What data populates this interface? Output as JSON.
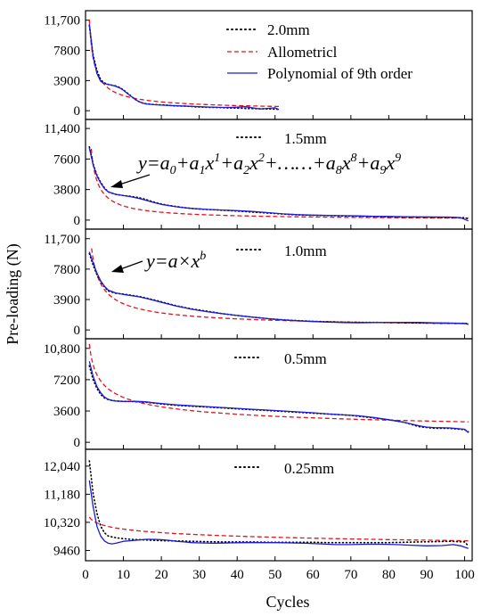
{
  "chart_data": {
    "type": "line",
    "xlabel": "Cycles",
    "ylabel": "Pre-loading (N)",
    "xlim": [
      0,
      102
    ],
    "xticks": [
      0,
      10,
      20,
      30,
      40,
      50,
      60,
      70,
      80,
      90,
      100
    ],
    "colors": {
      "data": "#000000",
      "allometric": "#e8121b",
      "polynomial": "#1a1adf"
    },
    "legend": [
      {
        "label": "2.0mm",
        "style": "dotted",
        "color": "#000000"
      },
      {
        "label": "Allometricl",
        "style": "dashed",
        "color": "#e8121b"
      },
      {
        "label": "Polynomial of 9th order",
        "style": "solid",
        "color": "#1a1adf"
      }
    ],
    "equations": {
      "poly": {
        "y": "y",
        "eq": "=",
        "a": "a",
        "x": "x",
        "plus": "+",
        "dots": "……",
        "s0": "0",
        "s1": "1",
        "s2": "2",
        "s8": "8",
        "s9": "9",
        "p1": "1",
        "p2": "2",
        "p8": "8",
        "p9": "9"
      },
      "power": {
        "y": "y",
        "eq": "=",
        "a": "a",
        "times": "×",
        "x": "x",
        "b": "b"
      }
    },
    "panels": [
      {
        "label": "2.0mm",
        "ylim": [
          -900,
          12700
        ],
        "yticks": [
          0,
          3900,
          7800,
          11700
        ],
        "ytick_labels": [
          "0",
          "3900",
          "7800",
          "11,700"
        ],
        "data": {
          "x": [
            1,
            2,
            3,
            4,
            5,
            6,
            7,
            8,
            9,
            10,
            11,
            12,
            13,
            14,
            15,
            16,
            17,
            18,
            19,
            20,
            21,
            22,
            23,
            24,
            25,
            26,
            27,
            28,
            29,
            30,
            31,
            32,
            33,
            34,
            35,
            36,
            37,
            38,
            39,
            40,
            41,
            42,
            43,
            44,
            45,
            46,
            47,
            48,
            49,
            50,
            51
          ],
          "y": [
            11000,
            7200,
            5200,
            4000,
            3600,
            3400,
            3300,
            3200,
            3000,
            2700,
            2300,
            1900,
            1500,
            1200,
            1000,
            900,
            850,
            800,
            780,
            760,
            740,
            700,
            650,
            620,
            600,
            600,
            580,
            540,
            500,
            480,
            460,
            450,
            430,
            420,
            410,
            400,
            380,
            360,
            340,
            330,
            320,
            300,
            280,
            270,
            260,
            250,
            240,
            230,
            220,
            200,
            180
          ]
        },
        "allometric": {
          "a": 11800,
          "b": -0.78,
          "x0": 1,
          "x1": 51
        },
        "polynomial": {
          "x": [
            1,
            2,
            3,
            4,
            5,
            6,
            7,
            8,
            9,
            10,
            11,
            12,
            13,
            14,
            15,
            16,
            18,
            20,
            22,
            25,
            28,
            30,
            32,
            35,
            38,
            40,
            42,
            44,
            46,
            48,
            50,
            51
          ],
          "y": [
            11200,
            7000,
            4800,
            3800,
            3500,
            3400,
            3300,
            3150,
            2950,
            2650,
            2250,
            1850,
            1500,
            1200,
            1000,
            880,
            780,
            720,
            680,
            620,
            560,
            520,
            480,
            440,
            420,
            460,
            520,
            380,
            230,
            300,
            380,
            150
          ]
        }
      },
      {
        "label": "1.5mm",
        "ylim": [
          -900,
          12300
        ],
        "yticks": [
          0,
          3800,
          7600,
          11400
        ],
        "ytick_labels": [
          "0",
          "3800",
          "7600",
          "11,400"
        ],
        "data": {
          "x": [
            1,
            2,
            3,
            4,
            5,
            6,
            8,
            10,
            12,
            14,
            16,
            18,
            20,
            22,
            24,
            26,
            28,
            30,
            32,
            34,
            36,
            38,
            40,
            42,
            44,
            46,
            48,
            50,
            52,
            54,
            56,
            58,
            60,
            62,
            64,
            66,
            68,
            70,
            72,
            74,
            76,
            78,
            80,
            82,
            84,
            86,
            88,
            90,
            92,
            94,
            96,
            98,
            100,
            101
          ],
          "y": [
            9100,
            7000,
            5600,
            4700,
            4000,
            3500,
            3200,
            3050,
            2950,
            2800,
            2550,
            2250,
            2000,
            1820,
            1680,
            1550,
            1450,
            1380,
            1320,
            1280,
            1230,
            1180,
            1120,
            1060,
            1000,
            940,
            880,
            820,
            750,
            700,
            650,
            620,
            600,
            580,
            560,
            540,
            520,
            500,
            480,
            460,
            440,
            420,
            400,
            390,
            380,
            370,
            360,
            350,
            340,
            330,
            320,
            310,
            300,
            150
          ]
        },
        "allometric": {
          "a": 12500,
          "b": -0.85,
          "x0": 1.5,
          "x1": 101
        },
        "polynomial": {
          "x": [
            1,
            2,
            3,
            4,
            5,
            6,
            8,
            10,
            12,
            14,
            16,
            18,
            20,
            24,
            28,
            32,
            36,
            40,
            44,
            48,
            52,
            56,
            60,
            64,
            68,
            72,
            76,
            80,
            84,
            88,
            92,
            96,
            99,
            101
          ],
          "y": [
            9000,
            6900,
            5500,
            4600,
            3900,
            3500,
            3200,
            3050,
            2900,
            2700,
            2450,
            2200,
            1950,
            1650,
            1450,
            1330,
            1250,
            1170,
            1070,
            930,
            780,
            680,
            620,
            580,
            550,
            520,
            480,
            450,
            420,
            400,
            390,
            380,
            300,
            -100
          ]
        }
      },
      {
        "label": "1.0mm",
        "ylim": [
          -900,
          12700
        ],
        "yticks": [
          0,
          3900,
          7800,
          11700
        ],
        "ytick_labels": [
          "0",
          "3900",
          "7800",
          "11,700"
        ],
        "data": {
          "x": [
            1,
            2,
            3,
            4,
            5,
            6,
            8,
            10,
            12,
            14,
            16,
            18,
            20,
            22,
            24,
            26,
            28,
            30,
            32,
            34,
            36,
            38,
            40,
            44,
            48,
            52,
            56,
            60,
            64,
            68,
            72,
            76,
            80,
            84,
            88,
            92,
            96,
            100,
            101
          ],
          "y": [
            9800,
            8300,
            7100,
            6200,
            5500,
            5000,
            4700,
            4600,
            4450,
            4300,
            4100,
            3850,
            3600,
            3350,
            3100,
            2900,
            2700,
            2550,
            2400,
            2250,
            2100,
            1980,
            1850,
            1650,
            1450,
            1300,
            1200,
            1100,
            1050,
            1000,
            980,
            960,
            950,
            930,
            900,
            880,
            860,
            850,
            800
          ]
        },
        "allometric": {
          "a": 14000,
          "b": -0.62,
          "x0": 1.6,
          "x1": 101
        },
        "polynomial": {
          "x": [
            1,
            2,
            3,
            4,
            5,
            6,
            8,
            10,
            12,
            14,
            16,
            18,
            20,
            24,
            28,
            32,
            36,
            40,
            44,
            48,
            52,
            56,
            60,
            64,
            68,
            72,
            76,
            80,
            84,
            88,
            92,
            96,
            100,
            101
          ],
          "y": [
            10000,
            8600,
            7300,
            6300,
            5600,
            5100,
            4750,
            4550,
            4400,
            4250,
            4050,
            3800,
            3550,
            3050,
            2650,
            2350,
            2100,
            1850,
            1650,
            1450,
            1300,
            1180,
            1080,
            1000,
            950,
            920,
            940,
            970,
            980,
            960,
            920,
            880,
            840,
            700
          ]
        }
      },
      {
        "label": "0.5mm",
        "ylim": [
          -600,
          11700
        ],
        "yticks": [
          0,
          3600,
          7200,
          10800
        ],
        "ytick_labels": [
          "0",
          "3600",
          "7200",
          "10,800"
        ],
        "data": {
          "x": [
            1,
            2,
            3,
            4,
            5,
            6,
            8,
            10,
            12,
            14,
            16,
            18,
            20,
            24,
            28,
            32,
            36,
            40,
            44,
            48,
            52,
            56,
            60,
            64,
            68,
            70,
            72,
            76,
            80,
            84,
            88,
            92,
            96,
            100,
            101
          ],
          "y": [
            8800,
            7200,
            6200,
            5500,
            5100,
            4900,
            4750,
            4700,
            4700,
            4650,
            4600,
            4500,
            4400,
            4250,
            4150,
            4050,
            3950,
            3850,
            3750,
            3650,
            3550,
            3450,
            3350,
            3250,
            3150,
            3100,
            3000,
            2800,
            2600,
            2300,
            1800,
            1600,
            1600,
            1450,
            1200
          ]
        },
        "allometric": {
          "a": 11300,
          "b": -0.34,
          "x0": 1,
          "x1": 101
        },
        "polynomial": {
          "x": [
            1,
            2,
            3,
            4,
            5,
            6,
            7,
            8,
            10,
            12,
            14,
            16,
            18,
            20,
            24,
            28,
            32,
            36,
            40,
            44,
            48,
            52,
            56,
            60,
            64,
            68,
            72,
            76,
            80,
            84,
            88,
            90,
            92,
            96,
            100,
            101
          ],
          "y": [
            9300,
            7600,
            6400,
            5700,
            5200,
            4950,
            4800,
            4750,
            4700,
            4700,
            4700,
            4650,
            4550,
            4450,
            4300,
            4200,
            4100,
            4000,
            3900,
            3800,
            3700,
            3600,
            3500,
            3400,
            3250,
            3150,
            3050,
            2850,
            2600,
            2300,
            1900,
            1750,
            1700,
            1650,
            1500,
            1100
          ]
        }
      },
      {
        "label": "0.25mm",
        "ylim": [
          9200,
          12500
        ],
        "yticks": [
          9460,
          10320,
          11180,
          12040
        ],
        "ytick_labels": [
          "9460",
          "10,320",
          "11,180",
          "12,040"
        ],
        "data": {
          "x": [
            1,
            2,
            3,
            4,
            5,
            6,
            8,
            10,
            12,
            14,
            16,
            18,
            20,
            24,
            28,
            32,
            36,
            40,
            44,
            48,
            52,
            56,
            60,
            64,
            68,
            72,
            76,
            80,
            84,
            88,
            92,
            96,
            100,
            101
          ],
          "y": [
            12200,
            11200,
            10600,
            10200,
            10000,
            9900,
            9850,
            9820,
            9800,
            9790,
            9780,
            9770,
            9760,
            9750,
            9740,
            9730,
            9720,
            9720,
            9720,
            9710,
            9710,
            9710,
            9710,
            9700,
            9700,
            9700,
            9700,
            9700,
            9710,
            9720,
            9730,
            9740,
            9720,
            9600
          ]
        },
        "allometric": {
          "a": 10480,
          "b": -0.0155,
          "x0": 1,
          "x1": 101
        },
        "polynomial": {
          "x": [
            1,
            2,
            3,
            4,
            5,
            6,
            7,
            8,
            10,
            12,
            14,
            16,
            18,
            20,
            22,
            24,
            26,
            28,
            30,
            34,
            38,
            42,
            46,
            50,
            54,
            58,
            62,
            66,
            70,
            74,
            78,
            82,
            86,
            90,
            94,
            97,
            99,
            101
          ],
          "y": [
            11600,
            10800,
            10200,
            9900,
            9750,
            9680,
            9660,
            9680,
            9740,
            9760,
            9780,
            9800,
            9800,
            9790,
            9770,
            9740,
            9720,
            9700,
            9690,
            9680,
            9690,
            9700,
            9700,
            9700,
            9690,
            9680,
            9660,
            9640,
            9640,
            9650,
            9650,
            9640,
            9620,
            9600,
            9610,
            9640,
            9600,
            9520
          ]
        }
      }
    ]
  }
}
